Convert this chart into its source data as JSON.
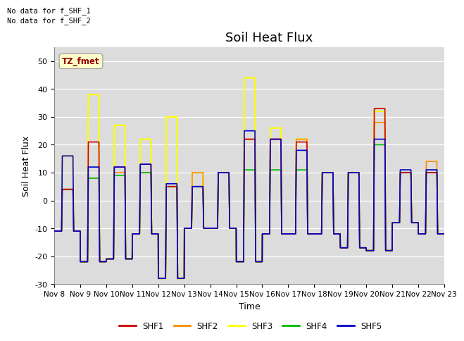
{
  "title": "Soil Heat Flux",
  "ylabel": "Soil Heat Flux",
  "xlabel": "Time",
  "no_data_text_1": "No data for f_SHF_1",
  "no_data_text_2": "No data for f_SHF_2",
  "tz_label": "TZ_fmet",
  "ylim": [
    -30,
    55
  ],
  "yticks": [
    -30,
    -20,
    -10,
    0,
    10,
    20,
    30,
    40,
    50
  ],
  "xtick_labels": [
    "Nov 8",
    "Nov 9",
    "Nov 10",
    "Nov 11",
    "Nov 12",
    "Nov 13",
    "Nov 14",
    "Nov 15",
    "Nov 16",
    "Nov 17",
    "Nov 18",
    "Nov 19",
    "Nov 20",
    "Nov 21",
    "Nov 22",
    "Nov 23"
  ],
  "colors": {
    "SHF1": "#cc0000",
    "SHF2": "#ff8c00",
    "SHF3": "#ffff00",
    "SHF4": "#00bb00",
    "SHF5": "#0000cc"
  },
  "plot_bg": "#dcdcdc",
  "fig_bg": "#ffffff",
  "lw": 1.2
}
